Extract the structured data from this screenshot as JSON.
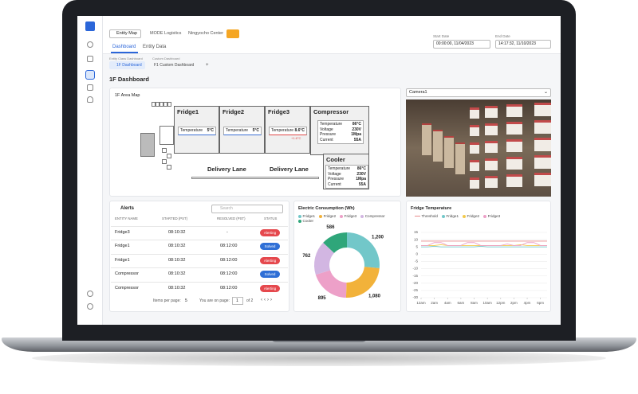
{
  "header": {
    "entity_map": "Entity Map",
    "breadcrumb": [
      "MODE Logistics",
      "Ningyocho Center"
    ],
    "start_label": "Start Date",
    "start": "00:00:00, 11/04/2023",
    "end_label": "End Date",
    "end": "14:17:32, 11/10/2023"
  },
  "tabs": [
    "Dashboard",
    "Entity Data"
  ],
  "dashboards": {
    "class_label": "Entity Class Dashboard",
    "class_item": "1F Dashboard",
    "custom_label": "Custom Dashboard",
    "custom_item": "F1 Custom Dashboard",
    "add": "+"
  },
  "page_title": "1F Dashboard",
  "area_map": {
    "title": "1F Area Map",
    "zones": [
      {
        "name": "Fridge1",
        "readings": [
          {
            "label": "Temperature",
            "value": "5°C"
          }
        ],
        "accent": "#3b6fd4"
      },
      {
        "name": "Fridge2",
        "readings": [
          {
            "label": "Temperature",
            "value": "5°C"
          }
        ],
        "accent": "#3b6fd4"
      },
      {
        "name": "Fridge3",
        "readings": [
          {
            "label": "Temperature",
            "value": "8.6°C"
          }
        ],
        "note": "+1.6°C",
        "accent": "#e04848"
      },
      {
        "name": "Compressor",
        "readings": [
          {
            "label": "Temperature",
            "value": "86°C"
          },
          {
            "label": "Voltage",
            "value": "230V"
          },
          {
            "label": "Pressure",
            "value": "1Mpa"
          },
          {
            "label": "Current",
            "value": "55A"
          }
        ]
      },
      {
        "name": "Cooler",
        "readings": [
          {
            "label": "Temperature",
            "value": "86°C"
          },
          {
            "label": "Voltage",
            "value": "230V"
          },
          {
            "label": "Pressure",
            "value": "1Mpa"
          },
          {
            "label": "Current",
            "value": "55A"
          }
        ]
      }
    ],
    "lanes": [
      "Delivery Lane",
      "Delivery Lane"
    ]
  },
  "camera": {
    "selected": "Camera1"
  },
  "alerts": {
    "title": "Alerts",
    "search": "Search",
    "columns": [
      "ENTITY NAME",
      "STARTED (PST)",
      "RESOLVED (PST)",
      "STATUS"
    ],
    "rows": [
      {
        "name": "Fridge3",
        "started": "08:10:32",
        "resolved": "-",
        "status": "Alerting",
        "status_color": "#e5484d"
      },
      {
        "name": "Fridge1",
        "started": "08:10:32",
        "resolved": "08:12:00",
        "status": "Solved",
        "status_color": "#2f6fd6"
      },
      {
        "name": "Fridge1",
        "started": "08:10:32",
        "resolved": "08:12:00",
        "status": "Alerting",
        "status_color": "#e5484d"
      },
      {
        "name": "Compressor",
        "started": "08:10:32",
        "resolved": "08:12:00",
        "status": "Solved",
        "status_color": "#2f6fd6"
      },
      {
        "name": "Compressor",
        "started": "08:10:32",
        "resolved": "08:12:00",
        "status": "Alerting",
        "status_color": "#e5484d"
      }
    ],
    "items_label": "Items per page:",
    "items": "5",
    "page_label": "You are on page:",
    "page": "1",
    "of": "of 2"
  },
  "chart_data": [
    {
      "type": "pie",
      "title": "Electric Consumption (Wh)",
      "categories": [
        "Fridge1",
        "Fridge2",
        "Fridge3",
        "Compressor",
        "Cooler"
      ],
      "values": [
        1200,
        1080,
        895,
        762,
        586
      ],
      "value_labels": [
        "1,200",
        "1,080",
        "895",
        "762",
        "586"
      ],
      "colors": [
        "#72c7c9",
        "#f2b23a",
        "#eda0c8",
        "#d2b6e2",
        "#2fa67a"
      ]
    },
    {
      "type": "line",
      "title": "Fridge Temperature",
      "x": [
        0,
        1,
        2,
        3,
        4,
        5,
        6,
        7,
        8,
        9,
        10,
        11,
        12,
        13,
        14,
        15,
        16,
        17,
        18,
        19
      ],
      "xlim": [
        0,
        19
      ],
      "xticks": [
        {
          "value": 0,
          "label": "12am"
        },
        {
          "value": 2,
          "label": "2am"
        },
        {
          "value": 4,
          "label": "4am"
        },
        {
          "value": 6,
          "label": "6am"
        },
        {
          "value": 8,
          "label": "8am"
        },
        {
          "value": 10,
          "label": "10am"
        },
        {
          "value": 12,
          "label": "12pm"
        },
        {
          "value": 14,
          "label": "2pm"
        },
        {
          "value": 16,
          "label": "4pm"
        },
        {
          "value": 18,
          "label": "6pm"
        }
      ],
      "ylim": [
        -30,
        15
      ],
      "yticks": [
        -30,
        -25,
        -20,
        -15,
        -10,
        -5,
        0,
        5,
        10,
        15
      ],
      "grid": true,
      "series": [
        {
          "name": "Threshold",
          "color": "#e88a8a",
          "values": [
            9,
            9,
            9,
            9,
            9,
            9,
            9,
            9,
            9,
            9,
            9,
            9,
            9,
            9,
            9,
            9,
            9,
            9,
            9,
            9
          ]
        },
        {
          "name": "Fridge1",
          "color": "#72c7c9",
          "values": [
            5,
            5,
            5.5,
            5,
            5,
            5,
            5,
            5,
            5,
            5.5,
            5,
            5,
            5,
            5,
            5,
            5,
            5,
            5,
            5,
            5
          ]
        },
        {
          "name": "Fridge2",
          "color": "#f2c94c",
          "values": [
            6,
            6,
            6,
            6.5,
            6,
            6,
            6,
            6,
            6,
            6,
            6,
            6,
            6,
            6,
            6,
            6.5,
            6,
            6,
            6,
            6
          ]
        },
        {
          "name": "Fridge3",
          "color": "#eda0c8",
          "values": [
            6,
            6,
            8,
            8,
            6,
            6,
            6,
            8,
            8,
            6,
            6,
            6,
            6,
            7,
            6,
            6,
            8,
            8,
            6,
            6
          ]
        }
      ]
    }
  ]
}
